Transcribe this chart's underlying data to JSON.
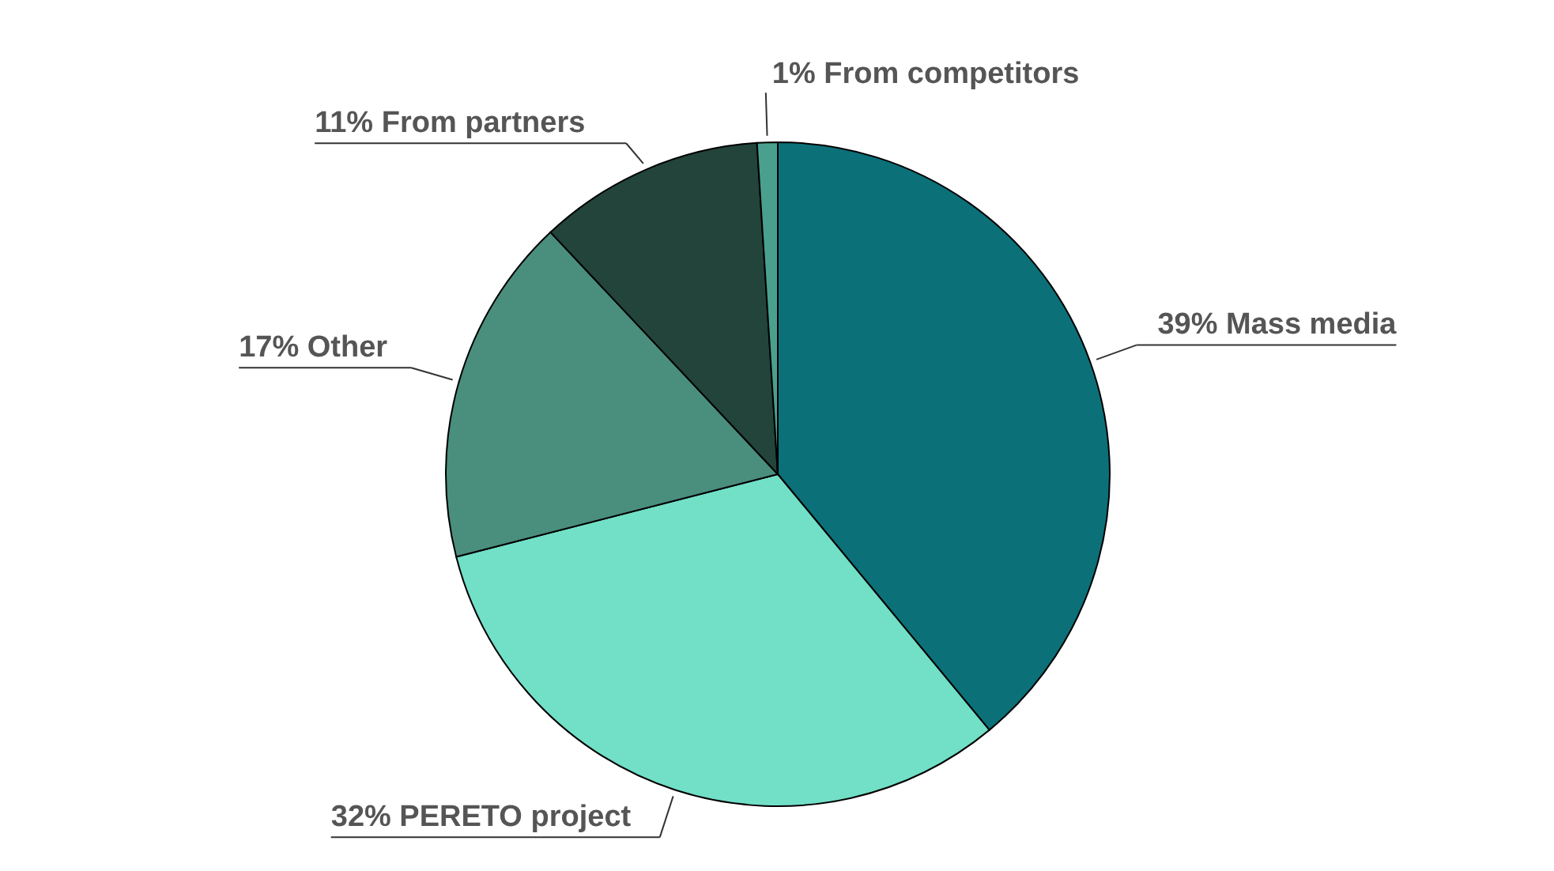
{
  "chart_data": {
    "type": "pie",
    "categories": [
      "39% Mass media",
      "32% PERETO project",
      "17% Other",
      "11% From partners",
      "1% From competitors"
    ],
    "values": [
      39,
      32,
      17,
      11,
      1
    ],
    "colors": [
      "#0c7079",
      "#72dfc7",
      "#4a8e7e",
      "#22443a",
      "#4aa08e"
    ]
  }
}
